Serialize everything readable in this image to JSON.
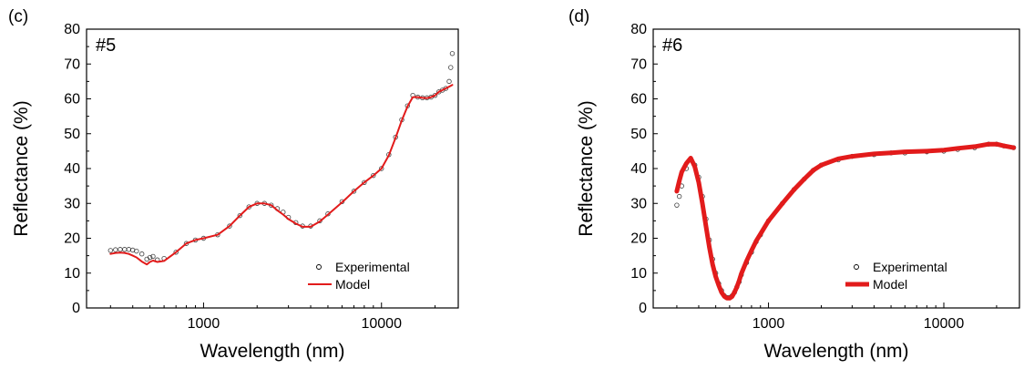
{
  "chart_data": [
    {
      "type": "scatter",
      "panel_label": "(c)",
      "sample_label": "#5",
      "xlabel": "Wavelength (nm)",
      "ylabel": "Reflectance (%)",
      "xscale": "log",
      "xlim": [
        220,
        27000
      ],
      "ylim": [
        0,
        80
      ],
      "xticks": [
        1000,
        10000
      ],
      "xtick_labels": [
        "1000",
        "10000"
      ],
      "yticks": [
        0,
        10,
        20,
        30,
        40,
        50,
        60,
        70,
        80
      ],
      "ytick_labels": [
        "0",
        "10",
        "20",
        "30",
        "40",
        "50",
        "60",
        "70",
        "80"
      ],
      "grid": false,
      "legend_position": "bottom-right",
      "series": [
        {
          "name": "Experimental",
          "style": "open-circle",
          "color": "#000000",
          "x": [
            300,
            320,
            340,
            360,
            380,
            400,
            420,
            450,
            480,
            500,
            520,
            550,
            600,
            700,
            800,
            900,
            1000,
            1200,
            1400,
            1600,
            1800,
            2000,
            2200,
            2400,
            2600,
            2800,
            3000,
            3300,
            3600,
            4000,
            4500,
            5000,
            6000,
            7000,
            8000,
            9000,
            10000,
            11000,
            12000,
            13000,
            14000,
            15000,
            16000,
            17000,
            18000,
            19000,
            20000,
            21000,
            22000,
            23000,
            24000,
            24500,
            25000
          ],
          "y": [
            16.5,
            16.7,
            16.8,
            16.8,
            16.8,
            16.6,
            16.3,
            15.5,
            14.0,
            14.5,
            14.8,
            13.8,
            14.2,
            16.0,
            18.5,
            19.5,
            20.0,
            21.0,
            23.5,
            26.5,
            29.0,
            30.0,
            30.0,
            29.5,
            28.5,
            27.5,
            26.0,
            24.5,
            23.5,
            23.5,
            25.0,
            27.0,
            30.5,
            33.5,
            36.0,
            38.0,
            40.0,
            44.0,
            49.0,
            54.0,
            58.0,
            61.0,
            60.5,
            60.3,
            60.3,
            60.5,
            61.0,
            62.0,
            62.5,
            63.0,
            65.0,
            69.0,
            73.0
          ]
        },
        {
          "name": "Model",
          "style": "line",
          "color": "#e21b1b",
          "x": [
            300,
            320,
            340,
            360,
            380,
            400,
            420,
            450,
            480,
            500,
            520,
            550,
            600,
            700,
            800,
            900,
            1000,
            1200,
            1400,
            1600,
            1800,
            2000,
            2200,
            2400,
            2600,
            2800,
            3000,
            3300,
            3600,
            4000,
            4500,
            5000,
            6000,
            7000,
            8000,
            9000,
            10000,
            11000,
            12000,
            13000,
            14000,
            15000,
            16000,
            17000,
            18000,
            19000,
            20000,
            21000,
            22000,
            23000,
            24000,
            25000
          ],
          "y": [
            15.5,
            15.8,
            15.9,
            15.8,
            15.5,
            15.0,
            14.5,
            13.3,
            12.5,
            13.2,
            13.6,
            13.2,
            13.5,
            16.0,
            18.5,
            19.5,
            20.0,
            21.0,
            23.5,
            26.5,
            29.0,
            30.0,
            30.0,
            29.5,
            28.0,
            26.8,
            25.5,
            24.2,
            23.3,
            23.3,
            24.8,
            26.8,
            30.3,
            33.5,
            36.0,
            38.0,
            40.0,
            43.8,
            48.8,
            53.8,
            57.8,
            60.5,
            60.5,
            60.3,
            60.2,
            60.5,
            61.0,
            62.0,
            62.5,
            63.0,
            63.5,
            64.0
          ]
        }
      ]
    },
    {
      "type": "scatter",
      "panel_label": "(d)",
      "sample_label": "#6",
      "xlabel": "Wavelength (nm)",
      "ylabel": "Reflectance (%)",
      "xscale": "log",
      "xlim": [
        220,
        27000
      ],
      "ylim": [
        0,
        80
      ],
      "xticks": [
        1000,
        10000
      ],
      "xtick_labels": [
        "1000",
        "10000"
      ],
      "yticks": [
        0,
        10,
        20,
        30,
        40,
        50,
        60,
        70,
        80
      ],
      "ytick_labels": [
        "0",
        "10",
        "20",
        "30",
        "40",
        "50",
        "60",
        "70",
        "80"
      ],
      "grid": false,
      "legend_position": "bottom-right",
      "series": [
        {
          "name": "Experimental",
          "style": "open-circle",
          "color": "#000000",
          "x": [
            300,
            310,
            320,
            340,
            360,
            380,
            400,
            420,
            440,
            460,
            480,
            500,
            520,
            540,
            560,
            580,
            600,
            620,
            640,
            660,
            680,
            700,
            750,
            800,
            850,
            900,
            1000,
            1200,
            1400,
            1600,
            1800,
            2000,
            2500,
            3000,
            4000,
            5000,
            6000,
            8000,
            10000,
            12000,
            15000,
            18000,
            20000,
            22000,
            25000
          ],
          "y": [
            29.5,
            32.0,
            35.0,
            40.0,
            42.5,
            41.0,
            37.5,
            32.0,
            25.5,
            19.5,
            14.0,
            10.0,
            7.0,
            5.0,
            3.5,
            3.0,
            3.0,
            3.5,
            4.5,
            6.0,
            7.5,
            9.5,
            13.0,
            16.0,
            19.0,
            21.0,
            25.0,
            30.0,
            34.0,
            37.0,
            39.5,
            41.0,
            42.5,
            43.5,
            44.0,
            44.5,
            44.5,
            44.8,
            45.0,
            45.5,
            46.0,
            47.0,
            47.0,
            46.5,
            46.0
          ]
        },
        {
          "name": "Model",
          "style": "line",
          "color": "#e21b1b",
          "x": [
            300,
            310,
            320,
            340,
            360,
            380,
            400,
            420,
            440,
            460,
            480,
            500,
            520,
            540,
            560,
            580,
            600,
            620,
            640,
            660,
            680,
            700,
            750,
            800,
            850,
            900,
            1000,
            1200,
            1400,
            1600,
            1800,
            2000,
            2500,
            3000,
            4000,
            5000,
            6000,
            8000,
            10000,
            12000,
            15000,
            18000,
            20000,
            22000,
            25000
          ],
          "y": [
            33.5,
            36.5,
            39.0,
            41.5,
            43.0,
            40.5,
            36.0,
            30.0,
            23.5,
            17.5,
            12.5,
            9.0,
            6.5,
            4.5,
            3.3,
            2.8,
            2.8,
            3.3,
            4.5,
            6.0,
            7.8,
            9.8,
            13.5,
            16.5,
            19.2,
            21.2,
            25.0,
            30.0,
            34.0,
            37.0,
            39.5,
            41.0,
            42.8,
            43.5,
            44.2,
            44.5,
            44.8,
            45.0,
            45.3,
            45.8,
            46.3,
            47.0,
            47.0,
            46.5,
            46.0
          ]
        }
      ]
    }
  ]
}
